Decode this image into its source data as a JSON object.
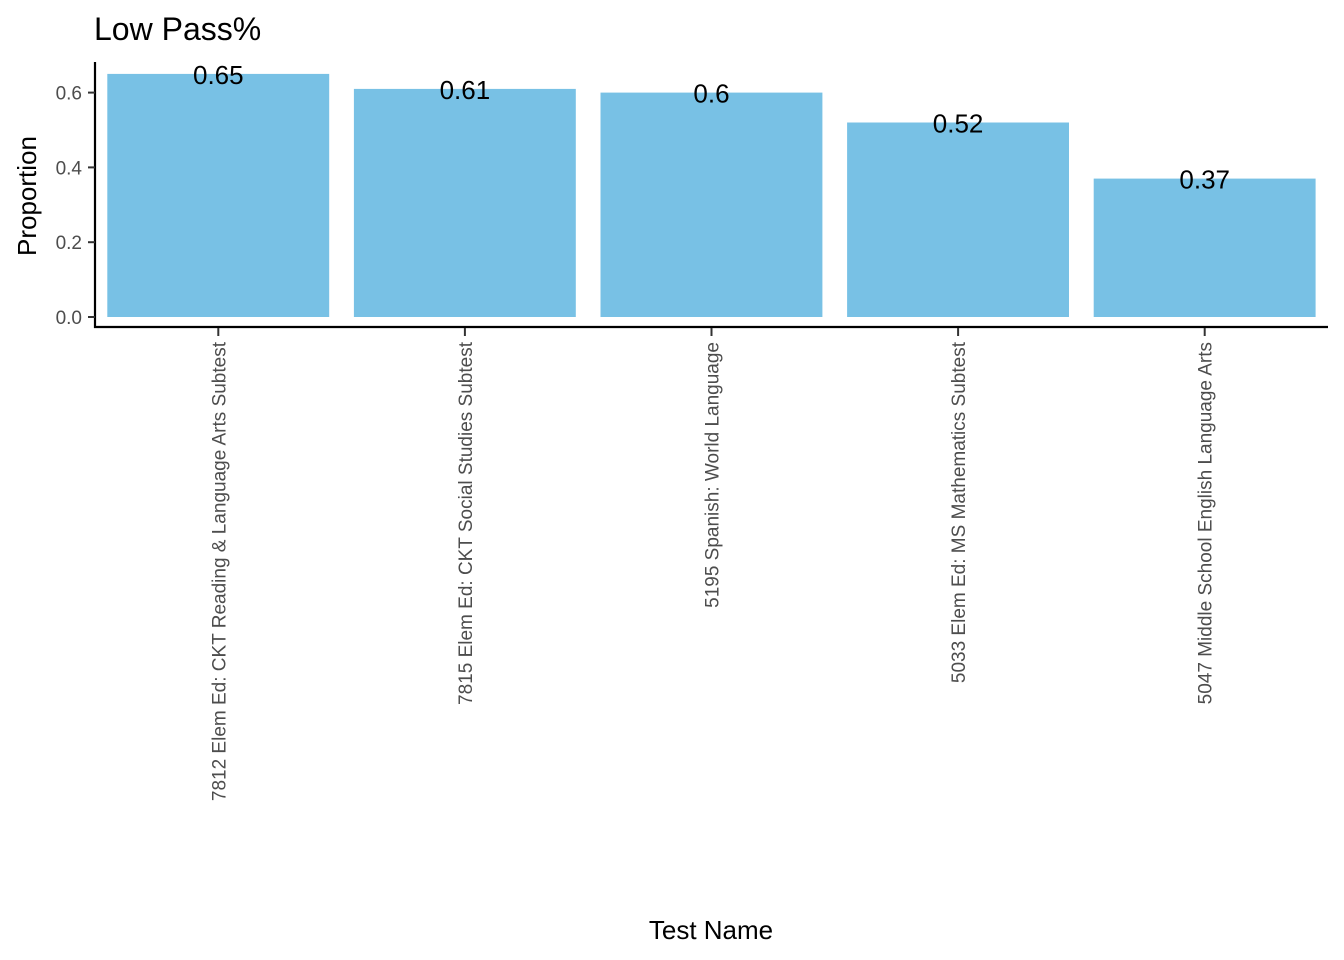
{
  "chart_data": {
    "type": "bar",
    "title": "Low Pass%",
    "xlabel": "Test Name",
    "ylabel": "Proportion",
    "categories": [
      "7812 Elem Ed: CKT Reading & Language Arts Subtest",
      "7815 Elem Ed: CKT Social Studies Subtest",
      "5195 Spanish: World Language",
      "5033 Elem Ed: MS Mathematics Subtest",
      "5047 Middle School English Language Arts"
    ],
    "values": [
      0.65,
      0.61,
      0.6,
      0.52,
      0.37
    ],
    "data_labels": [
      "0.65",
      "0.61",
      "0.6",
      "0.52",
      "0.37"
    ],
    "yticks": [
      0.0,
      0.2,
      0.4,
      0.6
    ],
    "ytick_labels": [
      "0.0",
      "0.2",
      "0.4",
      "0.6"
    ],
    "ylim": [
      0,
      0.68
    ],
    "bar_color": "#78C1E5",
    "grid": false,
    "legend": "none"
  }
}
